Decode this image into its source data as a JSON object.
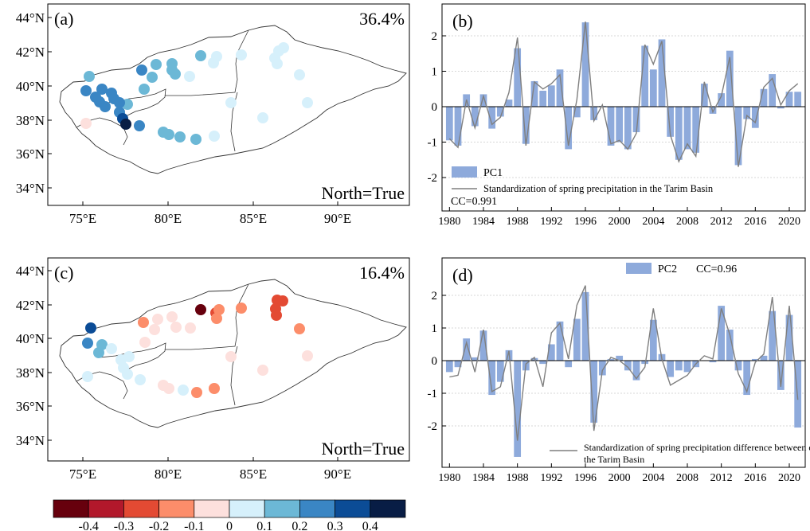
{
  "maps": [
    {
      "panel_label": "(a)",
      "variance": "36.4%",
      "north_note": "North=True",
      "lat_ticks": [
        "34°N",
        "36°N",
        "38°N",
        "40°N",
        "42°N",
        "44°N"
      ],
      "lon_ticks": [
        "75°E",
        "80°E",
        "85°E",
        "90°E"
      ]
    },
    {
      "panel_label": "(c)",
      "variance": "16.4%",
      "north_note": "North=True",
      "lat_ticks": [
        "34°N",
        "36°N",
        "38°N",
        "40°N",
        "42°N",
        "44°N"
      ],
      "lon_ticks": [
        "75°E",
        "80°E",
        "85°E",
        "90°E"
      ]
    }
  ],
  "colorbar": {
    "labels": [
      "-0.4",
      "-0.3",
      "-0.2",
      "-0.1",
      "0",
      "0.1",
      "0.2",
      "0.3",
      "0.4"
    ],
    "colors": [
      "#67000d",
      "#b2182b",
      "#e34a33",
      "#fc8d6a",
      "#fde0dd",
      "#d6f0fb",
      "#6cb8d6",
      "#3a86c4",
      "#0b4c96",
      "#081d45"
    ]
  },
  "chart_data": [
    {
      "type": "bar",
      "panel_label": "(b)",
      "x": [
        1980,
        1981,
        1982,
        1983,
        1984,
        1985,
        1986,
        1987,
        1988,
        1989,
        1990,
        1991,
        1992,
        1993,
        1994,
        1995,
        1996,
        1997,
        1998,
        1999,
        2000,
        2001,
        2002,
        2003,
        2004,
        2005,
        2006,
        2007,
        2008,
        2009,
        2010,
        2011,
        2012,
        2013,
        2014,
        2015,
        2016,
        2017,
        2018,
        2019,
        2020,
        2021
      ],
      "xticks": [
        "1980",
        "1984",
        "1988",
        "1992",
        "1996",
        "2000",
        "2004",
        "2008",
        "2012",
        "2016",
        "2020"
      ],
      "ylim": [
        -3,
        2.5
      ],
      "yticks": [
        "-2",
        "-1",
        "0",
        "1",
        "2"
      ],
      "series": [
        {
          "name": "PC1",
          "kind": "bar",
          "color": "#8eaadb",
          "values": [
            -0.95,
            -1.1,
            0.35,
            -0.55,
            0.35,
            -0.62,
            -0.28,
            0.2,
            1.65,
            -1.05,
            0.72,
            0.45,
            0.6,
            1.05,
            -1.2,
            -0.3,
            2.38,
            -0.38,
            0.02,
            -1.1,
            -1.0,
            -1.2,
            -0.72,
            1.72,
            1.05,
            1.9,
            -0.85,
            -1.5,
            -1.2,
            -1.3,
            0.65,
            -0.2,
            0.38,
            1.58,
            -1.65,
            -0.35,
            -0.6,
            0.5,
            0.92,
            -0.05,
            0.42,
            0.42
          ]
        },
        {
          "name": "Standardization of spring precipitation in the Tarim Basin",
          "kind": "line",
          "color": "#7f7f7f",
          "values": [
            -0.9,
            -1.15,
            0.2,
            -0.6,
            0.3,
            -0.5,
            -0.3,
            0.4,
            1.95,
            -1.1,
            0.7,
            0.5,
            0.65,
            0.9,
            -1.1,
            0.2,
            2.4,
            -0.4,
            0.05,
            -1.05,
            -0.95,
            -1.2,
            -0.75,
            1.75,
            1.2,
            1.85,
            -0.8,
            -1.55,
            -1.05,
            -1.4,
            0.7,
            -0.15,
            0.3,
            1.4,
            -1.7,
            -0.25,
            -0.45,
            0.55,
            0.8,
            0.05,
            0.45,
            0.65
          ]
        }
      ],
      "annotation": "CC=0.991",
      "legend_position": "bottom-left"
    },
    {
      "type": "bar",
      "panel_label": "(d)",
      "x": [
        1980,
        1981,
        1982,
        1983,
        1984,
        1985,
        1986,
        1987,
        1988,
        1989,
        1990,
        1991,
        1992,
        1993,
        1994,
        1995,
        1996,
        1997,
        1998,
        1999,
        2000,
        2001,
        2002,
        2003,
        2004,
        2005,
        2006,
        2007,
        2008,
        2009,
        2010,
        2011,
        2012,
        2013,
        2014,
        2015,
        2016,
        2017,
        2018,
        2019,
        2020,
        2021
      ],
      "xticks": [
        "1980",
        "1984",
        "1988",
        "1992",
        "1996",
        "2000",
        "2004",
        "2008",
        "2012",
        "2016",
        "2020"
      ],
      "ylim": [
        -3,
        2.5
      ],
      "yticks": [
        "-2",
        "-1",
        "0",
        "1",
        "2"
      ],
      "series": [
        {
          "name": "PC2",
          "kind": "bar",
          "color": "#8eaadb",
          "values": [
            -0.35,
            -0.2,
            0.68,
            0.1,
            0.92,
            -1.05,
            -0.65,
            0.32,
            -2.95,
            -0.3,
            0.08,
            -0.1,
            0.5,
            1.2,
            -0.2,
            1.28,
            2.1,
            -1.9,
            -0.45,
            0.05,
            0.15,
            -0.3,
            -0.6,
            -0.1,
            1.25,
            0.2,
            -0.5,
            -0.3,
            -0.35,
            -0.2,
            0.0,
            -0.05,
            1.68,
            0.95,
            -0.3,
            -1.05,
            0.05,
            0.15,
            1.52,
            -0.9,
            1.4,
            -2.05
          ]
        },
        {
          "name": "Standardization of spring precipitation difference between eastern and western of the Tarim Basin",
          "kind": "line",
          "color": "#7f7f7f",
          "values": [
            -0.5,
            -0.45,
            0.55,
            -0.35,
            0.95,
            -0.95,
            -0.8,
            0.3,
            -2.45,
            -0.1,
            0.1,
            -0.8,
            0.85,
            1.15,
            0.05,
            1.7,
            2.3,
            -2.15,
            -0.3,
            0.1,
            0.0,
            -0.2,
            -0.55,
            -0.2,
            1.6,
            0.05,
            -0.75,
            -0.6,
            -0.45,
            -0.1,
            0.15,
            0.05,
            1.6,
            0.8,
            -0.4,
            -0.95,
            -0.05,
            0.2,
            1.95,
            -0.8,
            1.68,
            -1.2
          ]
        }
      ],
      "annotation": "CC=0.96",
      "legend_position": "top-center"
    }
  ]
}
